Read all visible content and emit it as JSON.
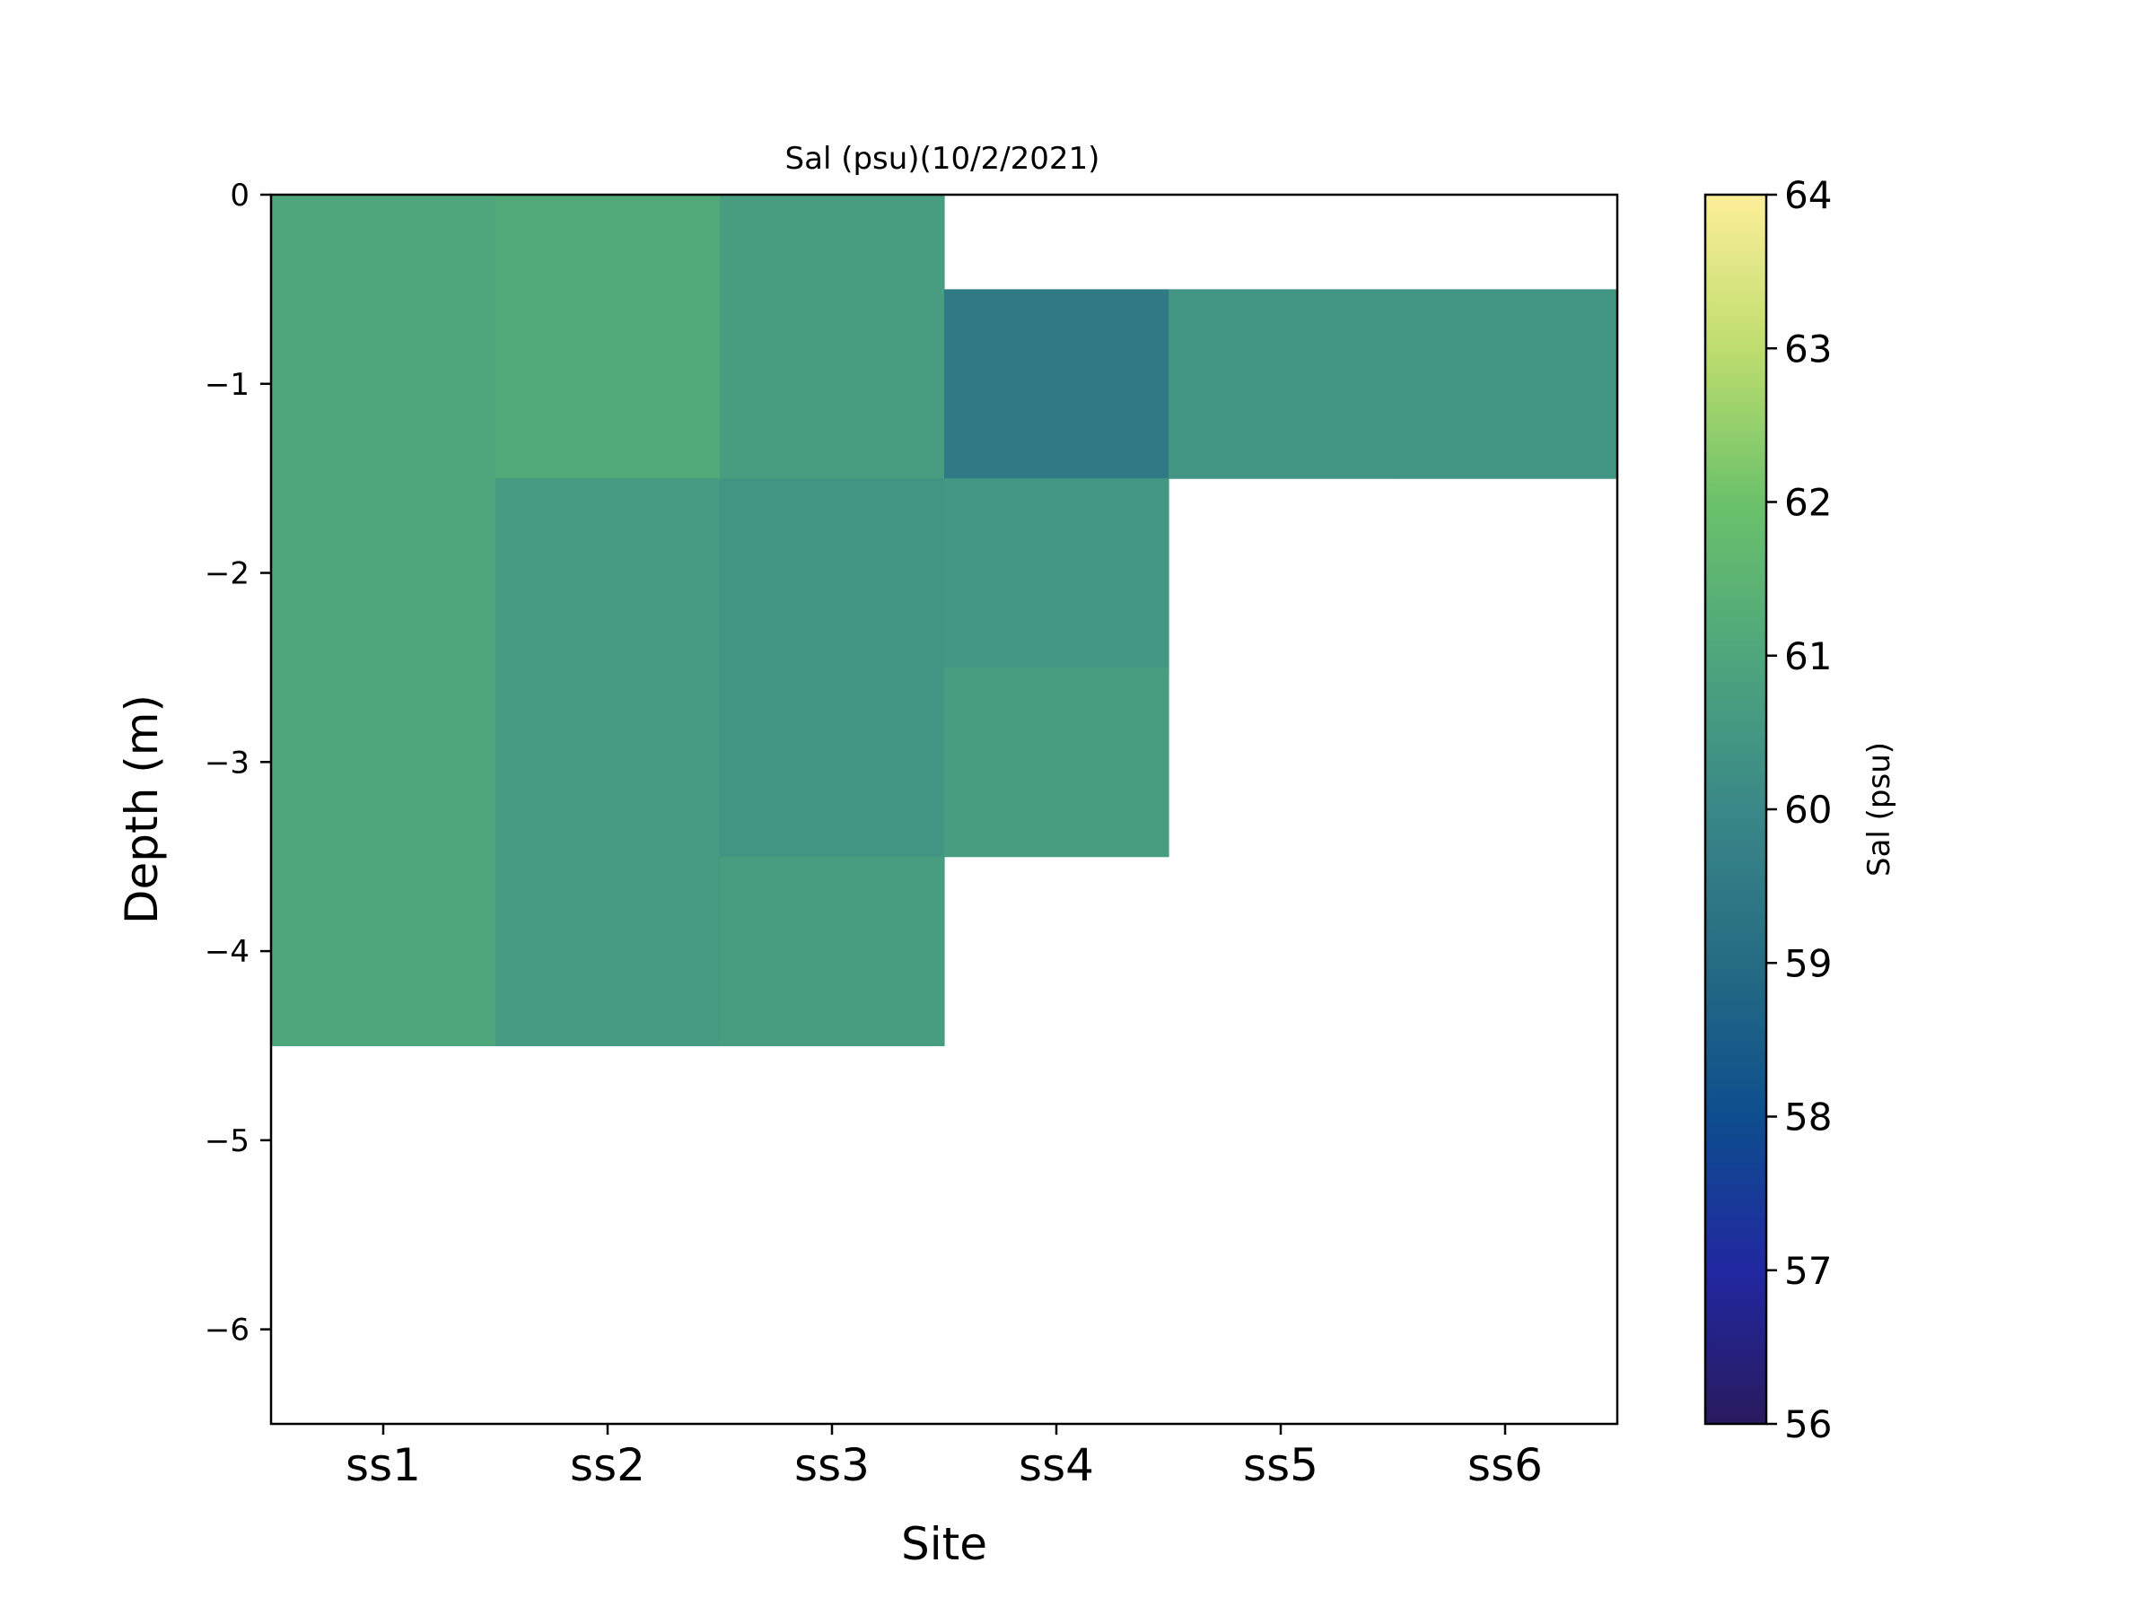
{
  "chart_data": {
    "type": "heatmap",
    "title": "Sal (psu)(10/2/2021)",
    "xlabel": "Site",
    "ylabel": "Depth (m)",
    "categories": [
      "ss1",
      "ss2",
      "ss3",
      "ss4",
      "ss5",
      "ss6"
    ],
    "ylim": [
      -6.5,
      0
    ],
    "yticks": [
      0,
      -1,
      -2,
      -3,
      -4,
      -5,
      -6
    ],
    "ytick_labels": [
      "0",
      "−1",
      "−2",
      "−3",
      "−4",
      "−5",
      "−6"
    ],
    "colorbar": {
      "label": "Sal (psu)",
      "colormap": "haline",
      "range": [
        56,
        64
      ],
      "ticks": [
        56,
        57,
        58,
        59,
        60,
        61,
        62,
        63,
        64
      ]
    },
    "cells": [
      {
        "site": "ss1",
        "depth": 0,
        "value": 61.0
      },
      {
        "site": "ss1",
        "depth": -1,
        "value": 61.0
      },
      {
        "site": "ss1",
        "depth": -2,
        "value": 61.0
      },
      {
        "site": "ss1",
        "depth": -3,
        "value": 61.0
      },
      {
        "site": "ss1",
        "depth": -4,
        "value": 61.0
      },
      {
        "site": "ss2",
        "depth": 0,
        "value": 61.1
      },
      {
        "site": "ss2",
        "depth": -1,
        "value": 61.1
      },
      {
        "site": "ss2",
        "depth": -2,
        "value": 60.6
      },
      {
        "site": "ss2",
        "depth": -3,
        "value": 60.6
      },
      {
        "site": "ss2",
        "depth": -4,
        "value": 60.6
      },
      {
        "site": "ss3",
        "depth": 0,
        "value": 60.7
      },
      {
        "site": "ss3",
        "depth": -1,
        "value": 60.7
      },
      {
        "site": "ss3",
        "depth": -2,
        "value": 60.4
      },
      {
        "site": "ss3",
        "depth": -3,
        "value": 60.4
      },
      {
        "site": "ss3",
        "depth": -4,
        "value": 60.7
      },
      {
        "site": "ss4",
        "depth": -1,
        "value": 59.5
      },
      {
        "site": "ss4",
        "depth": -2,
        "value": 60.5
      },
      {
        "site": "ss4",
        "depth": -3,
        "value": 60.7
      },
      {
        "site": "ss5",
        "depth": -1,
        "value": 60.4
      },
      {
        "site": "ss6",
        "depth": -1,
        "value": 60.4
      }
    ]
  }
}
